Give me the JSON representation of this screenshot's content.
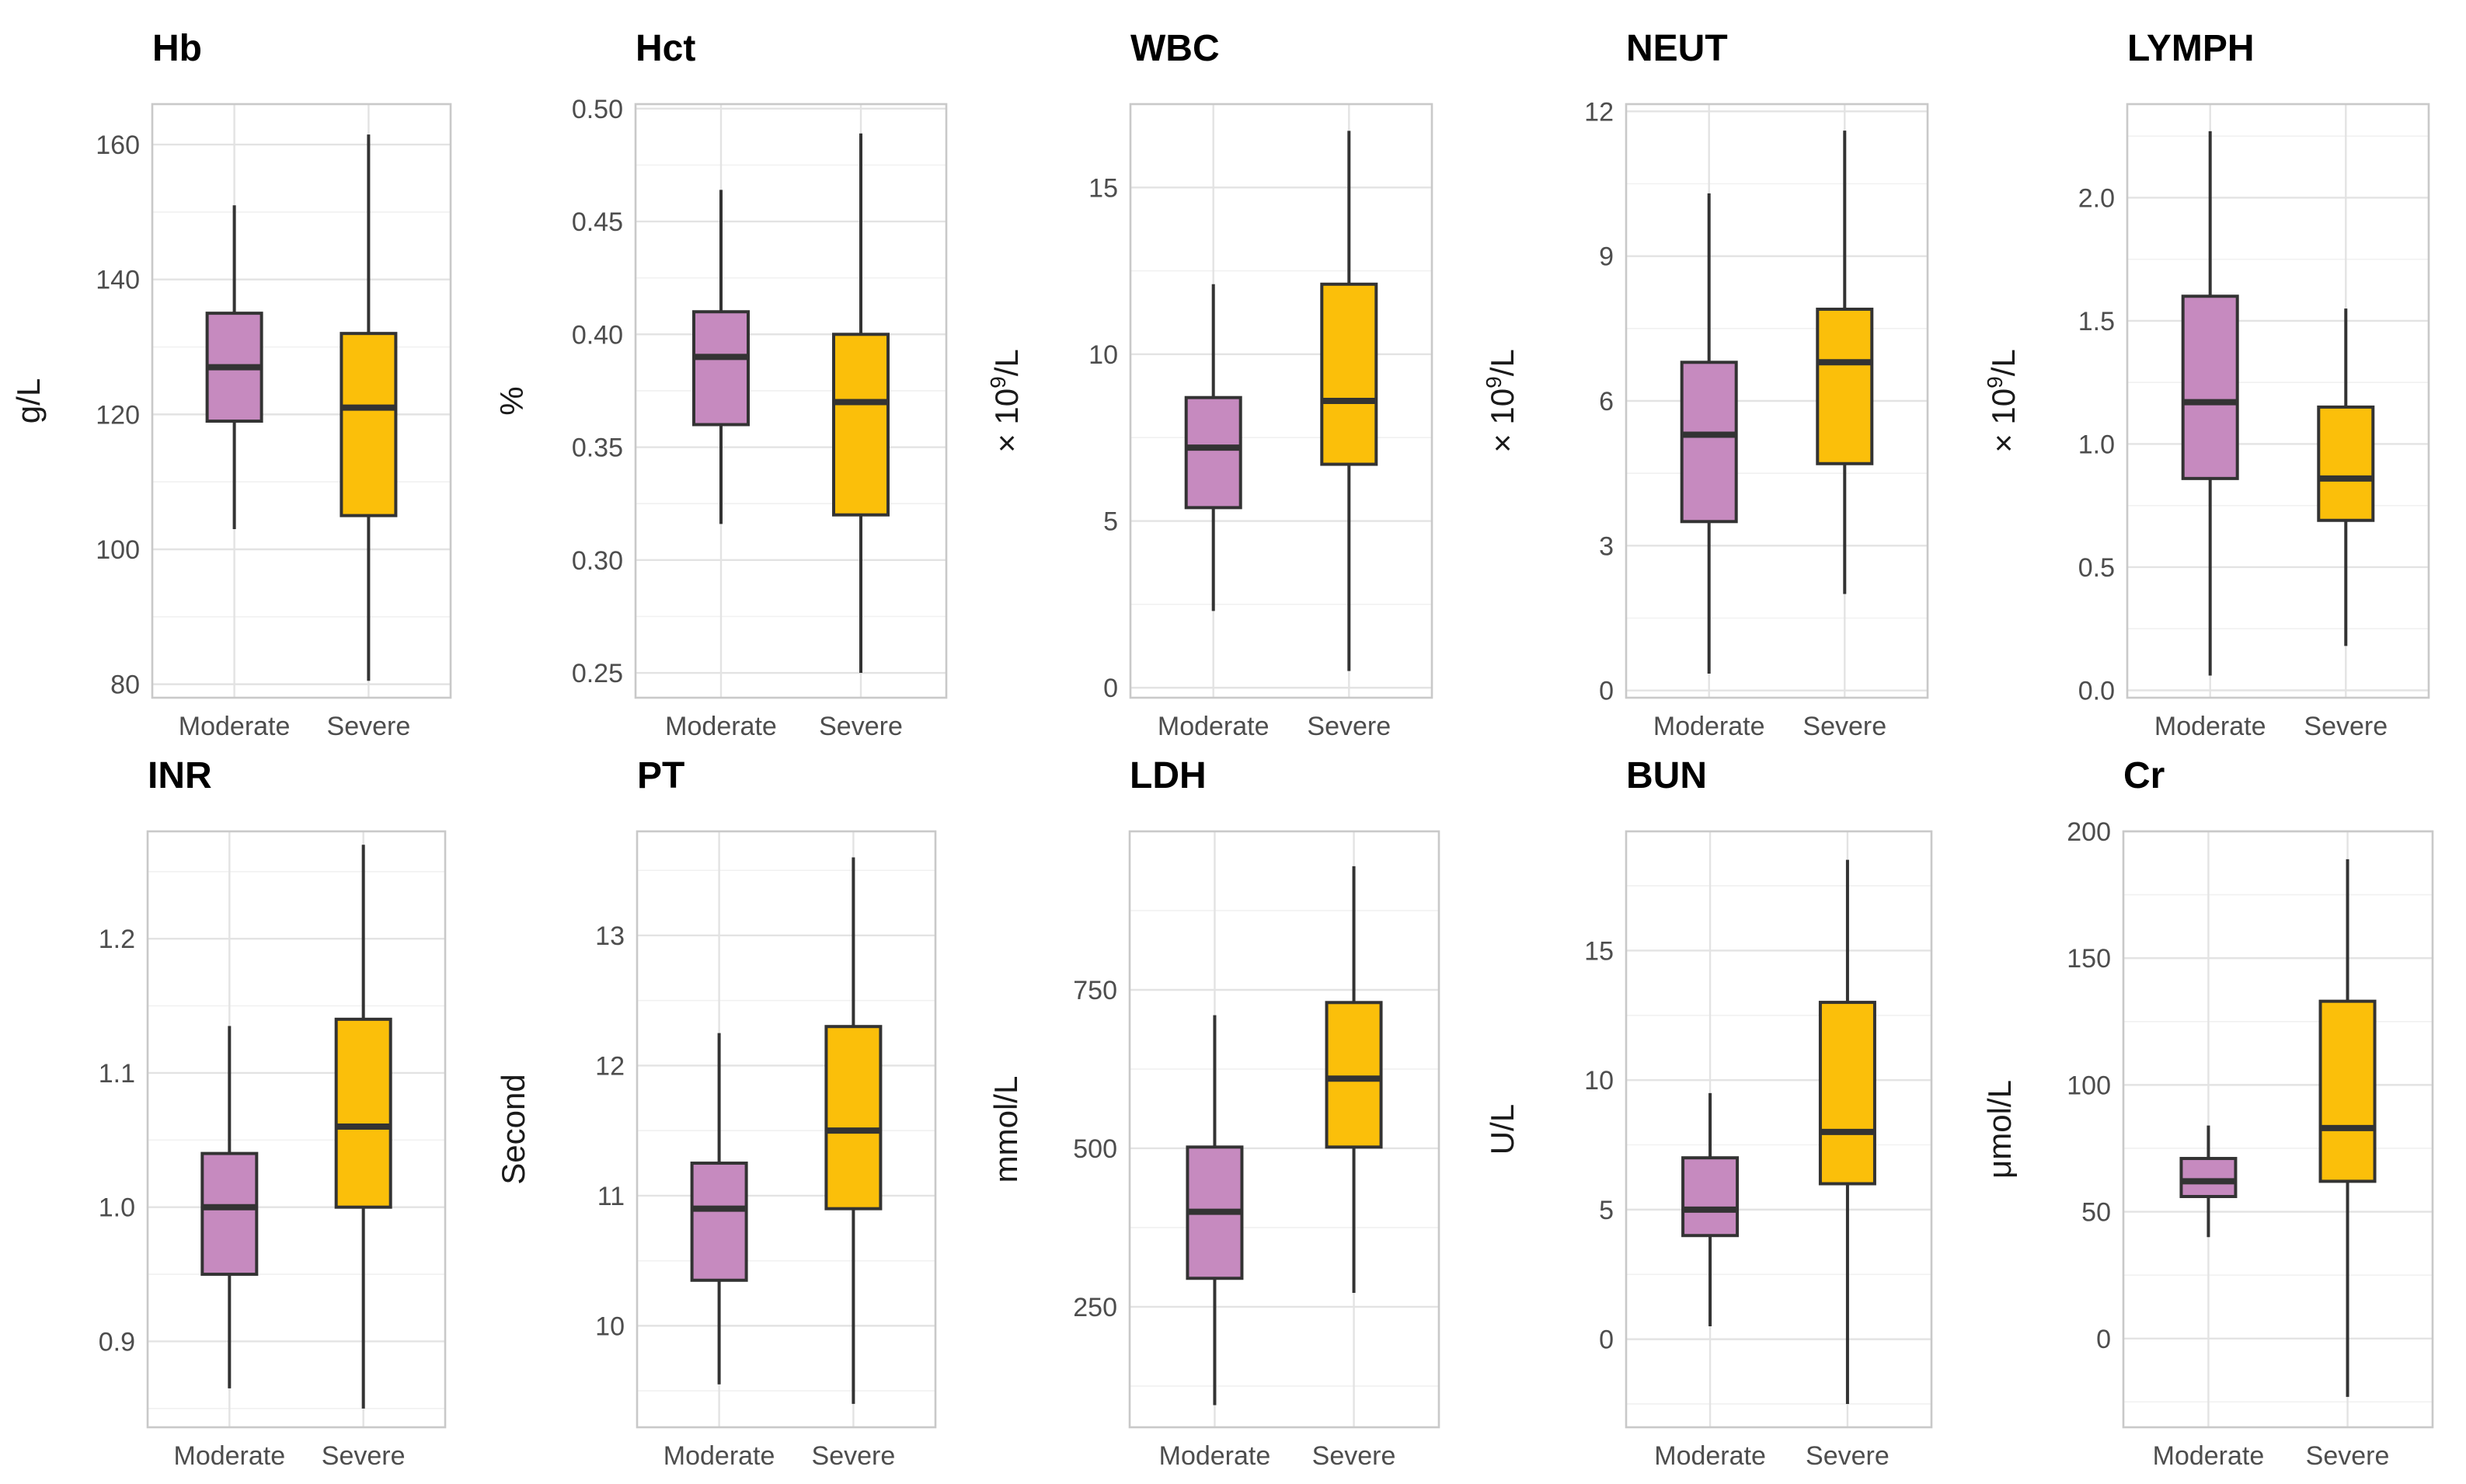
{
  "colors": {
    "Moderate": "#c68abf",
    "Severe": "#fbbf0a",
    "grid_major": "#e3e3e3",
    "grid_minor": "#f1f1f1",
    "frame": "#c9c9c9",
    "outline": "#333333"
  },
  "chart_data": [
    {
      "type": "box",
      "title": "Hb",
      "ylabel": "g/L",
      "ylabel_sup": "",
      "ylabel_post": "",
      "ylim": [
        78,
        166
      ],
      "ticks": [
        80,
        100,
        120,
        140,
        160
      ],
      "tick_labels": [
        "80",
        "100",
        "120",
        "140",
        "160"
      ],
      "categories": [
        "Moderate",
        "Severe"
      ],
      "series": [
        {
          "name": "Moderate",
          "whisker_low": 103,
          "q1": 119,
          "median": 127,
          "q3": 135,
          "whisker_high": 151
        },
        {
          "name": "Severe",
          "whisker_low": 80.5,
          "q1": 105,
          "median": 121,
          "q3": 132,
          "whisker_high": 161.5
        }
      ]
    },
    {
      "type": "box",
      "title": "Hct",
      "ylabel": "%",
      "ylabel_sup": "",
      "ylabel_post": "",
      "ylim": [
        0.239,
        0.502
      ],
      "ticks": [
        0.25,
        0.3,
        0.35,
        0.4,
        0.45,
        0.5
      ],
      "tick_labels": [
        "0.25",
        "0.30",
        "0.35",
        "0.40",
        "0.45",
        "0.50"
      ],
      "categories": [
        "Moderate",
        "Severe"
      ],
      "series": [
        {
          "name": "Moderate",
          "whisker_low": 0.316,
          "q1": 0.36,
          "median": 0.39,
          "q3": 0.41,
          "whisker_high": 0.464
        },
        {
          "name": "Severe",
          "whisker_low": 0.25,
          "q1": 0.32,
          "median": 0.37,
          "q3": 0.4,
          "whisker_high": 0.489
        }
      ]
    },
    {
      "type": "box",
      "title": "WBC",
      "ylabel": "× 10",
      "ylabel_sup": "9",
      "ylabel_post": "/L",
      "ylim": [
        -0.3,
        17.5
      ],
      "ticks": [
        0,
        5,
        10,
        15
      ],
      "tick_labels": [
        "0",
        "5",
        "10",
        "15"
      ],
      "categories": [
        "Moderate",
        "Severe"
      ],
      "series": [
        {
          "name": "Moderate",
          "whisker_low": 2.3,
          "q1": 5.4,
          "median": 7.2,
          "q3": 8.7,
          "whisker_high": 12.1
        },
        {
          "name": "Severe",
          "whisker_low": 0.5,
          "q1": 6.7,
          "median": 8.6,
          "q3": 12.1,
          "whisker_high": 16.7
        }
      ]
    },
    {
      "type": "box",
      "title": "NEUT",
      "ylabel": "× 10",
      "ylabel_sup": "9",
      "ylabel_post": "/L",
      "ylim": [
        -0.15,
        12.15
      ],
      "ticks": [
        0,
        3,
        6,
        9,
        12
      ],
      "tick_labels": [
        "0",
        "3",
        "6",
        "9",
        "12"
      ],
      "categories": [
        "Moderate",
        "Severe"
      ],
      "series": [
        {
          "name": "Moderate",
          "whisker_low": 0.35,
          "q1": 3.5,
          "median": 5.3,
          "q3": 6.8,
          "whisker_high": 10.3
        },
        {
          "name": "Severe",
          "whisker_low": 2.0,
          "q1": 4.7,
          "median": 6.8,
          "q3": 7.9,
          "whisker_high": 11.6
        }
      ]
    },
    {
      "type": "box",
      "title": "LYMPH",
      "ylabel": "× 10",
      "ylabel_sup": "9",
      "ylabel_post": "/L",
      "ylim": [
        -0.03,
        2.38
      ],
      "ticks": [
        0.0,
        0.5,
        1.0,
        1.5,
        2.0
      ],
      "tick_labels": [
        "0.0",
        "0.5",
        "1.0",
        "1.5",
        "2.0"
      ],
      "categories": [
        "Moderate",
        "Severe"
      ],
      "series": [
        {
          "name": "Moderate",
          "whisker_low": 0.06,
          "q1": 0.86,
          "median": 1.17,
          "q3": 1.6,
          "whisker_high": 2.27
        },
        {
          "name": "Severe",
          "whisker_low": 0.18,
          "q1": 0.69,
          "median": 0.86,
          "q3": 1.15,
          "whisker_high": 1.55
        }
      ]
    },
    {
      "type": "box",
      "title": "INR",
      "ylabel": "",
      "ylabel_sup": "",
      "ylabel_post": "",
      "ylim": [
        0.836,
        1.28
      ],
      "ticks": [
        0.9,
        1.0,
        1.1,
        1.2
      ],
      "tick_labels": [
        "0.9",
        "1.0",
        "1.1",
        "1.2"
      ],
      "categories": [
        "Moderate",
        "Severe"
      ],
      "series": [
        {
          "name": "Moderate",
          "whisker_low": 0.865,
          "q1": 0.95,
          "median": 1.0,
          "q3": 1.04,
          "whisker_high": 1.135
        },
        {
          "name": "Severe",
          "whisker_low": 0.85,
          "q1": 1.0,
          "median": 1.06,
          "q3": 1.14,
          "whisker_high": 1.27
        }
      ]
    },
    {
      "type": "box",
      "title": "PT",
      "ylabel": "Second",
      "ylabel_sup": "",
      "ylabel_post": "",
      "ylim": [
        9.22,
        13.8
      ],
      "ticks": [
        10,
        11,
        12,
        13
      ],
      "tick_labels": [
        "10",
        "11",
        "12",
        "13"
      ],
      "categories": [
        "Moderate",
        "Severe"
      ],
      "series": [
        {
          "name": "Moderate",
          "whisker_low": 9.55,
          "q1": 10.35,
          "median": 10.9,
          "q3": 11.25,
          "whisker_high": 12.25
        },
        {
          "name": "Severe",
          "whisker_low": 9.4,
          "q1": 10.9,
          "median": 11.5,
          "q3": 12.3,
          "whisker_high": 13.6
        }
      ]
    },
    {
      "type": "box",
      "title": "LDH",
      "ylabel": "mmol/L",
      "ylabel_sup": "",
      "ylabel_post": "",
      "ylim": [
        60,
        1000
      ],
      "ticks": [
        250,
        500,
        750
      ],
      "tick_labels": [
        "250",
        "500",
        "750"
      ],
      "categories": [
        "Moderate",
        "Severe"
      ],
      "series": [
        {
          "name": "Moderate",
          "whisker_low": 95,
          "q1": 295,
          "median": 400,
          "q3": 502,
          "whisker_high": 710
        },
        {
          "name": "Severe",
          "whisker_low": 272,
          "q1": 502,
          "median": 610,
          "q3": 730,
          "whisker_high": 945
        }
      ]
    },
    {
      "type": "box",
      "title": "BUN",
      "ylabel": "U/L",
      "ylabel_sup": "",
      "ylabel_post": "",
      "ylim": [
        -3.4,
        19.6
      ],
      "ticks": [
        0,
        5,
        10,
        15
      ],
      "tick_labels": [
        "0",
        "5",
        "10",
        "15"
      ],
      "categories": [
        "Moderate",
        "Severe"
      ],
      "series": [
        {
          "name": "Moderate",
          "whisker_low": 0.5,
          "q1": 4.0,
          "median": 5.0,
          "q3": 7.0,
          "whisker_high": 9.5
        },
        {
          "name": "Severe",
          "whisker_low": -2.5,
          "q1": 6.0,
          "median": 8.0,
          "q3": 13.0,
          "whisker_high": 18.5
        }
      ]
    },
    {
      "type": "box",
      "title": "Cr",
      "ylabel": "μmol/L",
      "ylabel_sup": "",
      "ylabel_post": "",
      "ylim": [
        -35,
        200
      ],
      "ticks": [
        0,
        50,
        100,
        150,
        200
      ],
      "tick_labels": [
        "0",
        "50",
        "100",
        "150",
        "200"
      ],
      "categories": [
        "Moderate",
        "Severe"
      ],
      "series": [
        {
          "name": "Moderate",
          "whisker_low": 40,
          "q1": 56,
          "median": 62,
          "q3": 71,
          "whisker_high": 84
        },
        {
          "name": "Severe",
          "whisker_low": -23,
          "q1": 62,
          "median": 83,
          "q3": 133,
          "whisker_high": 189
        }
      ]
    }
  ]
}
